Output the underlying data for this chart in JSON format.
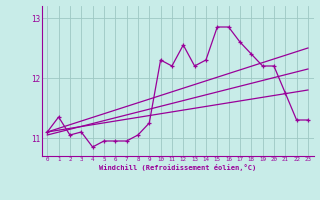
{
  "xlabel": "Windchill (Refroidissement éolien,°C)",
  "bg_color": "#c8ece8",
  "grid_color": "#9ec8c4",
  "line_color": "#990099",
  "x_ticks": [
    0,
    1,
    2,
    3,
    4,
    5,
    6,
    7,
    8,
    9,
    10,
    11,
    12,
    13,
    14,
    15,
    16,
    17,
    18,
    19,
    20,
    21,
    22,
    23
  ],
  "ylim": [
    10.7,
    13.2
  ],
  "yticks": [
    11,
    12,
    13
  ],
  "series1_x": [
    0,
    1,
    2,
    3,
    4,
    5,
    6,
    7,
    8,
    9,
    10,
    11,
    12,
    13,
    14,
    15,
    16,
    17,
    18,
    19,
    20,
    21,
    22,
    23
  ],
  "series1_y": [
    11.1,
    11.35,
    11.05,
    11.1,
    10.85,
    10.95,
    10.95,
    10.95,
    11.05,
    11.25,
    12.3,
    12.2,
    12.55,
    12.2,
    12.3,
    12.85,
    12.85,
    12.6,
    12.4,
    12.2,
    12.2,
    11.75,
    11.3,
    11.3
  ],
  "series2_x": [
    0,
    23
  ],
  "series2_y": [
    11.1,
    12.5
  ],
  "series3_x": [
    0,
    23
  ],
  "series3_y": [
    11.1,
    11.8
  ],
  "series4_x": [
    0,
    23
  ],
  "series4_y": [
    11.05,
    12.15
  ]
}
